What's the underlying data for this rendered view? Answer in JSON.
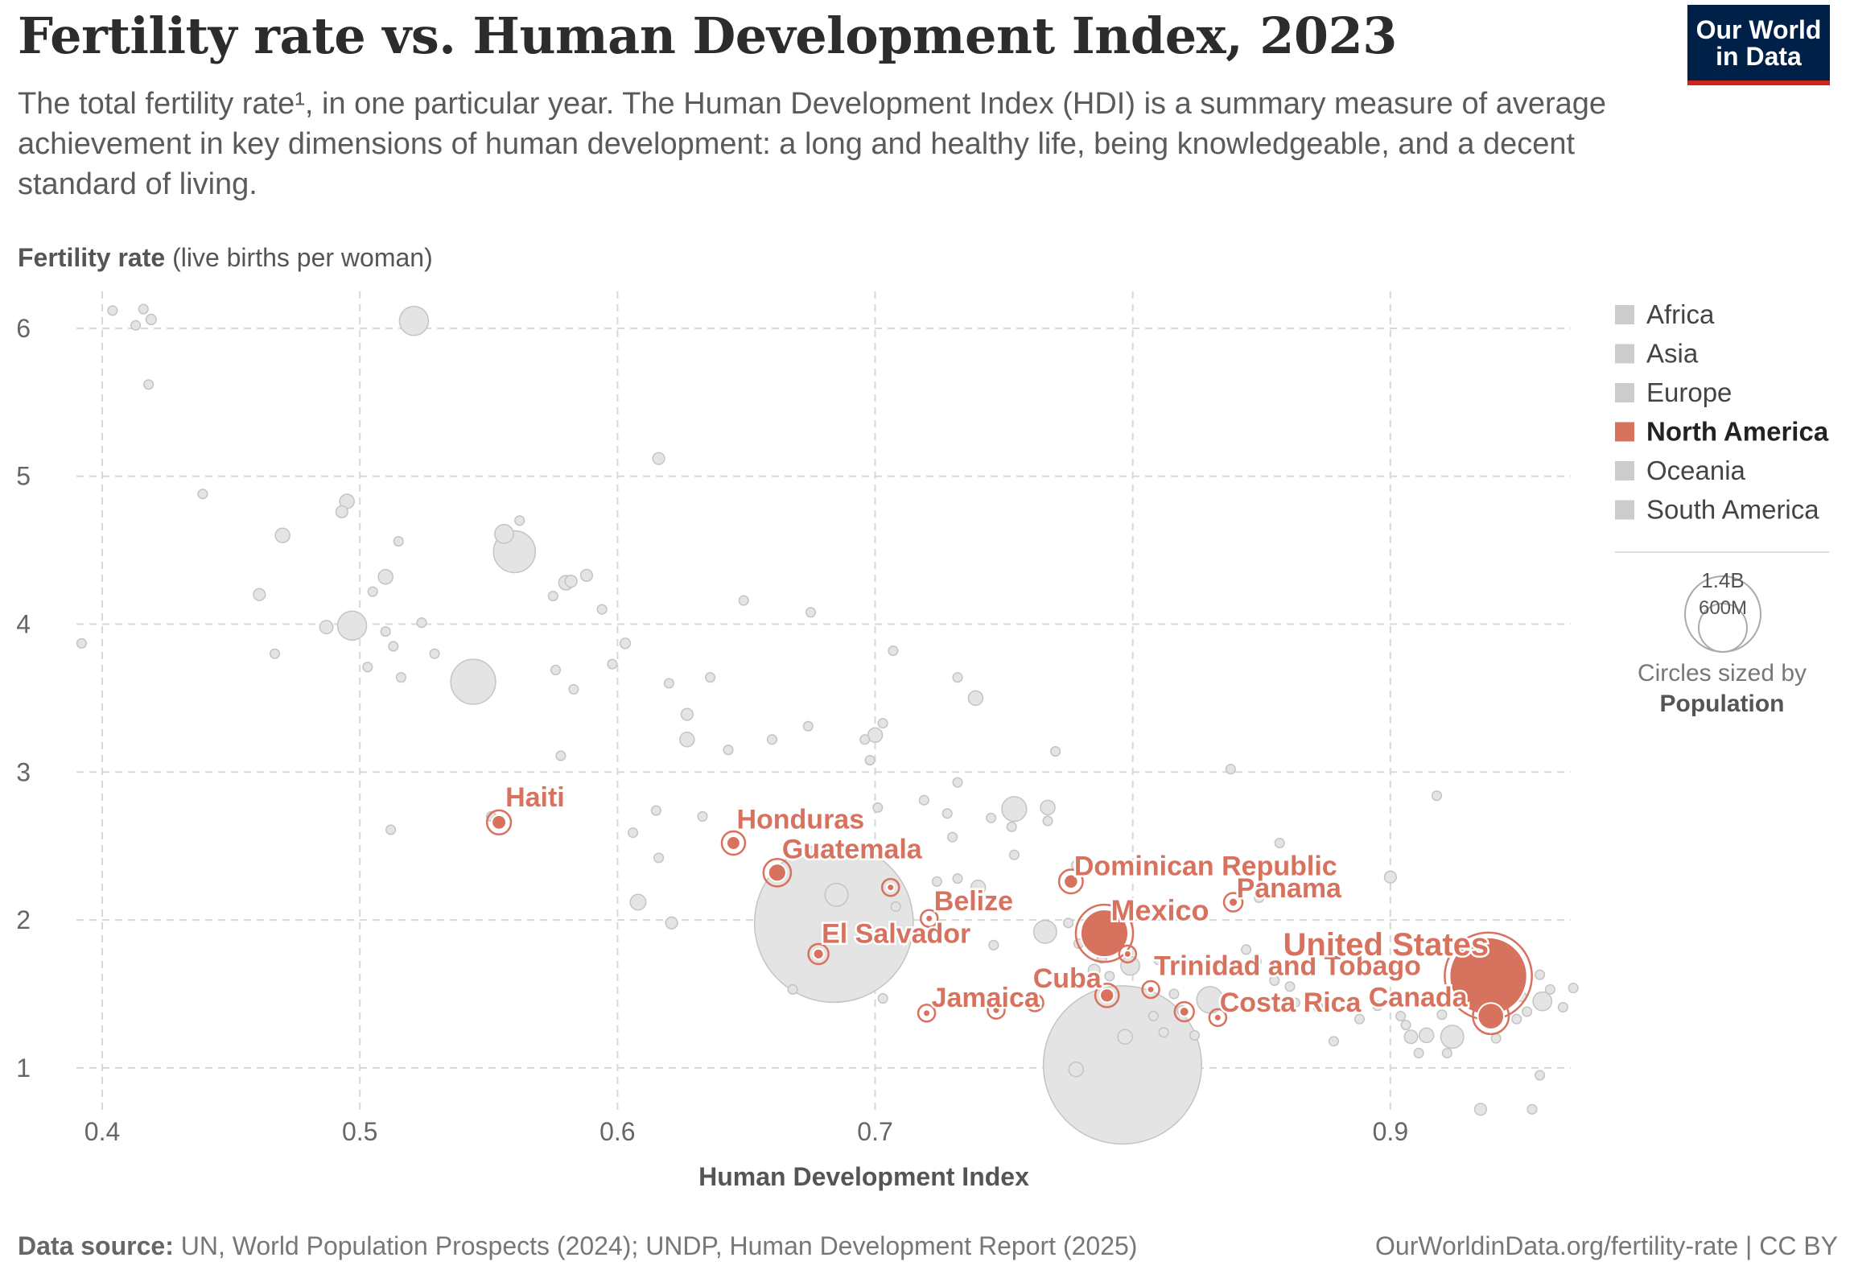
{
  "header": {
    "title": "Fertility rate vs. Human Development Index, 2023",
    "subtitle": "The total fertility rate¹, in one particular year. The Human Development Index (HDI) is a summary measure of average achievement in key dimensions of human development: a long and healthy life, being knowledgeable, and a decent standard of living.",
    "logo_line1": "Our World",
    "logo_line2": "in Data"
  },
  "legend": {
    "items": [
      {
        "label": "Africa",
        "color": "#cccccc",
        "active": false
      },
      {
        "label": "Asia",
        "color": "#cccccc",
        "active": false
      },
      {
        "label": "Europe",
        "color": "#cccccc",
        "active": false
      },
      {
        "label": "North America",
        "color": "#d7725f",
        "active": true
      },
      {
        "label": "Oceania",
        "color": "#cccccc",
        "active": false
      },
      {
        "label": "South America",
        "color": "#cccccc",
        "active": false
      }
    ],
    "size_legend": {
      "big_label": "1.4B",
      "small_label": "600M",
      "caption": "Circles sized by",
      "caption_bold": "Population"
    }
  },
  "footer": {
    "source_label": "Data source:",
    "source_text": "UN, World Population Prospects (2024); UNDP, Human Development Report (2025)",
    "right_text": "OurWorldinData.org/fertility-rate | CC BY"
  },
  "chart_data": {
    "type": "scatter",
    "title": "Fertility rate vs. Human Development Index, 2023",
    "xlabel": "Human Development Index",
    "ylabel": "Fertility rate",
    "ylabel_unit": "(live births per woman)",
    "xlim": [
      0.39,
      0.97
    ],
    "ylim": [
      0.7,
      6.25
    ],
    "xticks": [
      0.4,
      0.5,
      0.6,
      0.7,
      0.8,
      0.9
    ],
    "yticks": [
      1,
      2,
      3,
      4,
      5,
      6
    ],
    "grid": true,
    "highlight_color": "#d7725f",
    "background_color": "#e4e4e4",
    "highlighted": [
      {
        "label": "Haiti",
        "x": 0.554,
        "y": 2.66,
        "pop": 11.8
      },
      {
        "label": "Honduras",
        "x": 0.645,
        "y": 2.52,
        "pop": 10.6
      },
      {
        "label": "Guatemala",
        "x": 0.662,
        "y": 2.32,
        "pop": 18.1
      },
      {
        "label": "",
        "x": 0.706,
        "y": 2.22,
        "pop": 3.1
      },
      {
        "label": "Belize",
        "x": 0.721,
        "y": 2.01,
        "pop": 0.4
      },
      {
        "label": "El Salvador",
        "x": 0.678,
        "y": 1.77,
        "pop": 6.3
      },
      {
        "label": "Jamaica",
        "x": 0.72,
        "y": 1.37,
        "pop": 2.8
      },
      {
        "label": "",
        "x": 0.747,
        "y": 1.39,
        "pop": 0.3
      },
      {
        "label": "",
        "x": 0.762,
        "y": 1.44,
        "pop": 0.2
      },
      {
        "label": "Cuba",
        "x": 0.79,
        "y": 1.49,
        "pop": 11.0
      },
      {
        "label": "Dominican Republic",
        "x": 0.776,
        "y": 2.26,
        "pop": 11.3
      },
      {
        "label": "Mexico",
        "x": 0.789,
        "y": 1.91,
        "pop": 129.0
      },
      {
        "label": "",
        "x": 0.798,
        "y": 1.77,
        "pop": 0.4
      },
      {
        "label": "Trinidad and Tobago",
        "x": 0.807,
        "y": 1.53,
        "pop": 1.5
      },
      {
        "label": "Costa Rica",
        "x": 0.82,
        "y": 1.38,
        "pop": 5.2
      },
      {
        "label": "",
        "x": 0.833,
        "y": 1.34,
        "pop": 0.4
      },
      {
        "label": "Panama",
        "x": 0.839,
        "y": 2.12,
        "pop": 4.5
      },
      {
        "label": "United States",
        "x": 0.938,
        "y": 1.62,
        "pop": 343.0
      },
      {
        "label": "Canada",
        "x": 0.939,
        "y": 1.35,
        "pop": 39.3
      }
    ],
    "background": [
      {
        "x": 0.404,
        "y": 6.12,
        "pop": 5
      },
      {
        "x": 0.413,
        "y": 6.02,
        "pop": 5
      },
      {
        "x": 0.416,
        "y": 6.13,
        "pop": 5
      },
      {
        "x": 0.419,
        "y": 6.06,
        "pop": 6
      },
      {
        "x": 0.418,
        "y": 5.62,
        "pop": 5
      },
      {
        "x": 0.521,
        "y": 6.05,
        "pop": 48
      },
      {
        "x": 0.392,
        "y": 3.87,
        "pop": 5
      },
      {
        "x": 0.439,
        "y": 4.88,
        "pop": 5
      },
      {
        "x": 0.47,
        "y": 4.6,
        "pop": 12
      },
      {
        "x": 0.461,
        "y": 4.2,
        "pop": 8
      },
      {
        "x": 0.467,
        "y": 3.8,
        "pop": 5
      },
      {
        "x": 0.495,
        "y": 4.83,
        "pop": 12
      },
      {
        "x": 0.493,
        "y": 4.76,
        "pop": 8
      },
      {
        "x": 0.487,
        "y": 3.98,
        "pop": 10
      },
      {
        "x": 0.497,
        "y": 3.99,
        "pop": 48
      },
      {
        "x": 0.51,
        "y": 4.32,
        "pop": 12
      },
      {
        "x": 0.505,
        "y": 4.22,
        "pop": 5
      },
      {
        "x": 0.515,
        "y": 4.56,
        "pop": 5
      },
      {
        "x": 0.51,
        "y": 3.95,
        "pop": 5
      },
      {
        "x": 0.513,
        "y": 3.85,
        "pop": 5
      },
      {
        "x": 0.503,
        "y": 3.71,
        "pop": 5
      },
      {
        "x": 0.516,
        "y": 3.64,
        "pop": 5
      },
      {
        "x": 0.524,
        "y": 4.01,
        "pop": 5
      },
      {
        "x": 0.529,
        "y": 3.8,
        "pop": 5
      },
      {
        "x": 0.512,
        "y": 2.61,
        "pop": 5
      },
      {
        "x": 0.544,
        "y": 3.61,
        "pop": 115
      },
      {
        "x": 0.556,
        "y": 4.61,
        "pop": 20
      },
      {
        "x": 0.56,
        "y": 4.49,
        "pop": 100
      },
      {
        "x": 0.562,
        "y": 4.7,
        "pop": 5
      },
      {
        "x": 0.58,
        "y": 4.28,
        "pop": 12
      },
      {
        "x": 0.582,
        "y": 4.29,
        "pop": 8
      },
      {
        "x": 0.588,
        "y": 4.33,
        "pop": 8
      },
      {
        "x": 0.575,
        "y": 4.19,
        "pop": 5
      },
      {
        "x": 0.594,
        "y": 4.1,
        "pop": 5
      },
      {
        "x": 0.576,
        "y": 3.69,
        "pop": 5
      },
      {
        "x": 0.583,
        "y": 3.56,
        "pop": 5
      },
      {
        "x": 0.598,
        "y": 3.73,
        "pop": 5
      },
      {
        "x": 0.603,
        "y": 3.87,
        "pop": 6
      },
      {
        "x": 0.578,
        "y": 3.11,
        "pop": 5
      },
      {
        "x": 0.551,
        "y": 2.7,
        "pop": 5
      },
      {
        "x": 0.616,
        "y": 5.12,
        "pop": 8
      },
      {
        "x": 0.649,
        "y": 4.16,
        "pop": 5
      },
      {
        "x": 0.675,
        "y": 4.08,
        "pop": 5
      },
      {
        "x": 0.62,
        "y": 3.6,
        "pop": 5
      },
      {
        "x": 0.627,
        "y": 3.39,
        "pop": 8
      },
      {
        "x": 0.636,
        "y": 3.64,
        "pop": 5
      },
      {
        "x": 0.627,
        "y": 3.22,
        "pop": 12
      },
      {
        "x": 0.643,
        "y": 3.15,
        "pop": 5
      },
      {
        "x": 0.66,
        "y": 3.22,
        "pop": 5
      },
      {
        "x": 0.674,
        "y": 3.31,
        "pop": 5
      },
      {
        "x": 0.696,
        "y": 3.22,
        "pop": 5
      },
      {
        "x": 0.703,
        "y": 3.33,
        "pop": 5
      },
      {
        "x": 0.7,
        "y": 3.25,
        "pop": 12
      },
      {
        "x": 0.698,
        "y": 3.08,
        "pop": 5
      },
      {
        "x": 0.707,
        "y": 3.82,
        "pop": 5
      },
      {
        "x": 0.615,
        "y": 2.74,
        "pop": 5
      },
      {
        "x": 0.606,
        "y": 2.59,
        "pop": 5
      },
      {
        "x": 0.616,
        "y": 2.42,
        "pop": 5
      },
      {
        "x": 0.608,
        "y": 2.12,
        "pop": 14
      },
      {
        "x": 0.621,
        "y": 1.98,
        "pop": 8
      },
      {
        "x": 0.633,
        "y": 2.7,
        "pop": 5
      },
      {
        "x": 0.668,
        "y": 1.53,
        "pop": 5
      },
      {
        "x": 0.685,
        "y": 2.17,
        "pop": 30
      },
      {
        "x": 0.684,
        "y": 1.98,
        "pop": 1440
      },
      {
        "x": 0.701,
        "y": 2.76,
        "pop": 5
      },
      {
        "x": 0.708,
        "y": 2.09,
        "pop": 5
      },
      {
        "x": 0.703,
        "y": 1.47,
        "pop": 5
      },
      {
        "x": 0.719,
        "y": 2.81,
        "pop": 5
      },
      {
        "x": 0.728,
        "y": 2.72,
        "pop": 5
      },
      {
        "x": 0.73,
        "y": 2.56,
        "pop": 5
      },
      {
        "x": 0.732,
        "y": 2.93,
        "pop": 5
      },
      {
        "x": 0.724,
        "y": 2.26,
        "pop": 5
      },
      {
        "x": 0.732,
        "y": 2.28,
        "pop": 5
      },
      {
        "x": 0.74,
        "y": 2.22,
        "pop": 12
      },
      {
        "x": 0.745,
        "y": 2.69,
        "pop": 5
      },
      {
        "x": 0.739,
        "y": 3.5,
        "pop": 12
      },
      {
        "x": 0.732,
        "y": 3.64,
        "pop": 5
      },
      {
        "x": 0.754,
        "y": 2.75,
        "pop": 35
      },
      {
        "x": 0.753,
        "y": 2.63,
        "pop": 5
      },
      {
        "x": 0.754,
        "y": 2.44,
        "pop": 5
      },
      {
        "x": 0.767,
        "y": 2.76,
        "pop": 12
      },
      {
        "x": 0.767,
        "y": 2.67,
        "pop": 5
      },
      {
        "x": 0.77,
        "y": 3.14,
        "pop": 5
      },
      {
        "x": 0.778,
        "y": 2.37,
        "pop": 5
      },
      {
        "x": 0.746,
        "y": 1.83,
        "pop": 5
      },
      {
        "x": 0.766,
        "y": 1.92,
        "pop": 30
      },
      {
        "x": 0.775,
        "y": 1.98,
        "pop": 5
      },
      {
        "x": 0.779,
        "y": 1.84,
        "pop": 5
      },
      {
        "x": 0.788,
        "y": 1.74,
        "pop": 5
      },
      {
        "x": 0.785,
        "y": 1.66,
        "pop": 8
      },
      {
        "x": 0.791,
        "y": 1.62,
        "pop": 5
      },
      {
        "x": 0.799,
        "y": 1.69,
        "pop": 20
      },
      {
        "x": 0.797,
        "y": 1.21,
        "pop": 12
      },
      {
        "x": 0.778,
        "y": 0.99,
        "pop": 12
      },
      {
        "x": 0.796,
        "y": 1.02,
        "pop": 1430
      },
      {
        "x": 0.81,
        "y": 1.73,
        "pop": 5
      },
      {
        "x": 0.816,
        "y": 1.5,
        "pop": 5
      },
      {
        "x": 0.819,
        "y": 1.39,
        "pop": 5
      },
      {
        "x": 0.808,
        "y": 1.35,
        "pop": 5
      },
      {
        "x": 0.812,
        "y": 1.24,
        "pop": 5
      },
      {
        "x": 0.824,
        "y": 1.22,
        "pop": 5
      },
      {
        "x": 0.83,
        "y": 1.46,
        "pop": 40
      },
      {
        "x": 0.838,
        "y": 3.02,
        "pop": 5
      },
      {
        "x": 0.849,
        "y": 2.15,
        "pop": 5
      },
      {
        "x": 0.857,
        "y": 2.52,
        "pop": 5
      },
      {
        "x": 0.844,
        "y": 1.8,
        "pop": 5
      },
      {
        "x": 0.848,
        "y": 1.72,
        "pop": 5
      },
      {
        "x": 0.855,
        "y": 1.59,
        "pop": 5
      },
      {
        "x": 0.861,
        "y": 1.55,
        "pop": 5
      },
      {
        "x": 0.863,
        "y": 1.44,
        "pop": 5
      },
      {
        "x": 0.872,
        "y": 1.41,
        "pop": 5
      },
      {
        "x": 0.878,
        "y": 1.18,
        "pop": 5
      },
      {
        "x": 0.888,
        "y": 1.33,
        "pop": 5
      },
      {
        "x": 0.895,
        "y": 1.42,
        "pop": 5
      },
      {
        "x": 0.9,
        "y": 2.29,
        "pop": 8
      },
      {
        "x": 0.904,
        "y": 1.35,
        "pop": 5
      },
      {
        "x": 0.906,
        "y": 1.29,
        "pop": 5
      },
      {
        "x": 0.908,
        "y": 1.21,
        "pop": 10
      },
      {
        "x": 0.911,
        "y": 1.1,
        "pop": 5
      },
      {
        "x": 0.913,
        "y": 1.45,
        "pop": 5
      },
      {
        "x": 0.914,
        "y": 1.22,
        "pop": 12
      },
      {
        "x": 0.918,
        "y": 2.84,
        "pop": 5
      },
      {
        "x": 0.92,
        "y": 1.36,
        "pop": 5
      },
      {
        "x": 0.922,
        "y": 1.1,
        "pop": 5
      },
      {
        "x": 0.924,
        "y": 1.21,
        "pop": 30
      },
      {
        "x": 0.928,
        "y": 1.51,
        "pop": 8
      },
      {
        "x": 0.93,
        "y": 1.58,
        "pop": 5
      },
      {
        "x": 0.932,
        "y": 1.45,
        "pop": 5
      },
      {
        "x": 0.935,
        "y": 0.72,
        "pop": 8
      },
      {
        "x": 0.944,
        "y": 1.56,
        "pop": 5
      },
      {
        "x": 0.946,
        "y": 1.45,
        "pop": 5
      },
      {
        "x": 0.949,
        "y": 1.33,
        "pop": 5
      },
      {
        "x": 0.951,
        "y": 1.48,
        "pop": 5
      },
      {
        "x": 0.953,
        "y": 1.38,
        "pop": 5
      },
      {
        "x": 0.955,
        "y": 0.72,
        "pop": 5
      },
      {
        "x": 0.958,
        "y": 1.63,
        "pop": 5
      },
      {
        "x": 0.959,
        "y": 1.45,
        "pop": 20
      },
      {
        "x": 0.962,
        "y": 1.53,
        "pop": 5
      },
      {
        "x": 0.967,
        "y": 1.41,
        "pop": 5
      },
      {
        "x": 0.971,
        "y": 1.54,
        "pop": 5
      },
      {
        "x": 0.941,
        "y": 1.2,
        "pop": 5
      },
      {
        "x": 0.958,
        "y": 0.95,
        "pop": 5
      }
    ]
  }
}
